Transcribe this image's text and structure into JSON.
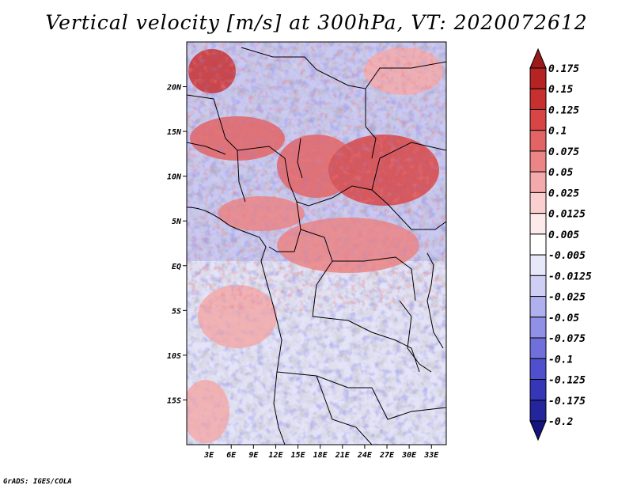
{
  "title": "Vertical velocity [m/s] at 300hPa, VT: 2020072612",
  "credit": "GrADS: IGES/COLA",
  "map": {
    "lon_range": [
      0,
      35
    ],
    "lat_range": [
      -20,
      25
    ],
    "lat_ticks": [
      {
        "value": 20,
        "label": "20N"
      },
      {
        "value": 15,
        "label": "15N"
      },
      {
        "value": 10,
        "label": "10N"
      },
      {
        "value": 5,
        "label": "5N"
      },
      {
        "value": 0,
        "label": "EQ"
      },
      {
        "value": -5,
        "label": "5S"
      },
      {
        "value": -10,
        "label": "10S"
      },
      {
        "value": -15,
        "label": "15S"
      }
    ],
    "lon_ticks": [
      {
        "value": 3,
        "label": "3E"
      },
      {
        "value": 6,
        "label": "6E"
      },
      {
        "value": 9,
        "label": "9E"
      },
      {
        "value": 12,
        "label": "12E"
      },
      {
        "value": 15,
        "label": "15E"
      },
      {
        "value": 18,
        "label": "18E"
      },
      {
        "value": 21,
        "label": "21E"
      },
      {
        "value": 24,
        "label": "24E"
      },
      {
        "value": 27,
        "label": "27E"
      },
      {
        "value": 30,
        "label": "30E"
      },
      {
        "value": 33,
        "label": "33E"
      }
    ]
  },
  "colorbar": {
    "levels": [
      "0.175",
      "0.15",
      "0.125",
      "0.1",
      "0.075",
      "0.05",
      "0.025",
      "0.0125",
      "0.005",
      "-0.005",
      "-0.0125",
      "-0.025",
      "-0.05",
      "-0.075",
      "-0.1",
      "-0.125",
      "-0.175",
      "-0.2"
    ],
    "colors": [
      "#9b1b1b",
      "#b52323",
      "#c83030",
      "#d84545",
      "#e36464",
      "#ec8585",
      "#f4aaaa",
      "#fbcfcf",
      "#fdeaea",
      "#ffffff",
      "#e8e8fb",
      "#cfcff6",
      "#b0b0ef",
      "#9090e6",
      "#7070dc",
      "#5050cf",
      "#3636b8",
      "#24249c",
      "#14147d"
    ]
  }
}
